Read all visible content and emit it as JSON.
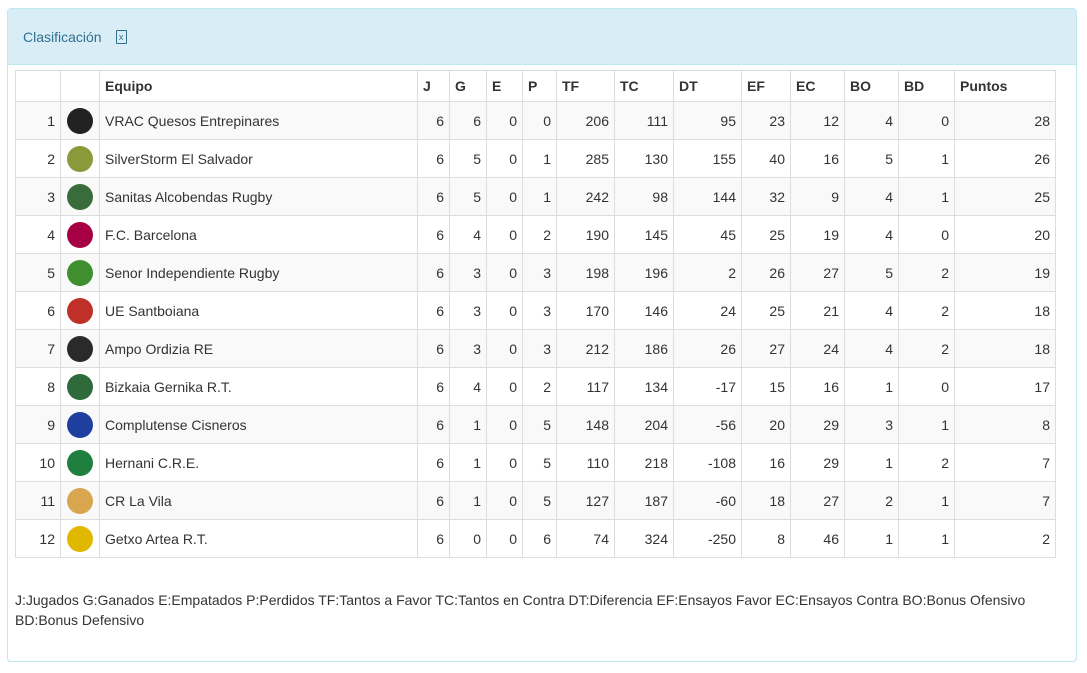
{
  "panel": {
    "title": "Clasificación",
    "export_icon": "excel-file-icon"
  },
  "table": {
    "headers": [
      "",
      "",
      "Equipo",
      "J",
      "G",
      "E",
      "P",
      "TF",
      "TC",
      "DT",
      "EF",
      "EC",
      "BO",
      "BD",
      "Puntos"
    ],
    "rows": [
      {
        "pos": "1",
        "team": "VRAC Quesos Entrepinares",
        "color": "#222222",
        "stats": [
          "6",
          "6",
          "0",
          "0",
          "206",
          "111",
          "95",
          "23",
          "12",
          "4",
          "0",
          "28"
        ]
      },
      {
        "pos": "2",
        "team": "SilverStorm El Salvador",
        "color": "#8a9a3a",
        "stats": [
          "6",
          "5",
          "0",
          "1",
          "285",
          "130",
          "155",
          "40",
          "16",
          "5",
          "1",
          "26"
        ]
      },
      {
        "pos": "3",
        "team": "Sanitas Alcobendas Rugby",
        "color": "#3a6b3a",
        "stats": [
          "6",
          "5",
          "0",
          "1",
          "242",
          "98",
          "144",
          "32",
          "9",
          "4",
          "1",
          "25"
        ]
      },
      {
        "pos": "4",
        "team": "F.C. Barcelona",
        "color": "#a50044",
        "stats": [
          "6",
          "4",
          "0",
          "2",
          "190",
          "145",
          "45",
          "25",
          "19",
          "4",
          "0",
          "20"
        ]
      },
      {
        "pos": "5",
        "team": "Senor Independiente Rugby",
        "color": "#3f8f2f",
        "stats": [
          "6",
          "3",
          "0",
          "3",
          "198",
          "196",
          "2",
          "26",
          "27",
          "5",
          "2",
          "19"
        ]
      },
      {
        "pos": "6",
        "team": "UE Santboiana",
        "color": "#c0302a",
        "stats": [
          "6",
          "3",
          "0",
          "3",
          "170",
          "146",
          "24",
          "25",
          "21",
          "4",
          "2",
          "18"
        ]
      },
      {
        "pos": "7",
        "team": "Ampo Ordizia RE",
        "color": "#2a2a2a",
        "stats": [
          "6",
          "3",
          "0",
          "3",
          "212",
          "186",
          "26",
          "27",
          "24",
          "4",
          "2",
          "18"
        ]
      },
      {
        "pos": "8",
        "team": "Bizkaia Gernika R.T.",
        "color": "#2f6b3a",
        "stats": [
          "6",
          "4",
          "0",
          "2",
          "117",
          "134",
          "-17",
          "15",
          "16",
          "1",
          "0",
          "17"
        ]
      },
      {
        "pos": "9",
        "team": "Complutense Cisneros",
        "color": "#1f3f9f",
        "stats": [
          "6",
          "1",
          "0",
          "5",
          "148",
          "204",
          "-56",
          "20",
          "29",
          "3",
          "1",
          "8"
        ]
      },
      {
        "pos": "10",
        "team": "Hernani C.R.E.",
        "color": "#1f7f3f",
        "stats": [
          "6",
          "1",
          "0",
          "5",
          "110",
          "218",
          "-108",
          "16",
          "29",
          "1",
          "2",
          "7"
        ]
      },
      {
        "pos": "11",
        "team": "CR La Vila",
        "color": "#d9a650",
        "stats": [
          "6",
          "1",
          "0",
          "5",
          "127",
          "187",
          "-60",
          "18",
          "27",
          "2",
          "1",
          "7"
        ]
      },
      {
        "pos": "12",
        "team": "Getxo Artea R.T.",
        "color": "#e0b800",
        "stats": [
          "6",
          "0",
          "0",
          "6",
          "74",
          "324",
          "-250",
          "8",
          "46",
          "1",
          "1",
          "2"
        ]
      }
    ]
  },
  "legend": "J:Jugados G:Ganados E:Empatados P:Perdidos TF:Tantos a Favor TC:Tantos en Contra DT:Diferencia EF:Ensayos Favor EC:Ensayos Contra BO:Bonus Ofensivo BD:Bonus Defensivo"
}
